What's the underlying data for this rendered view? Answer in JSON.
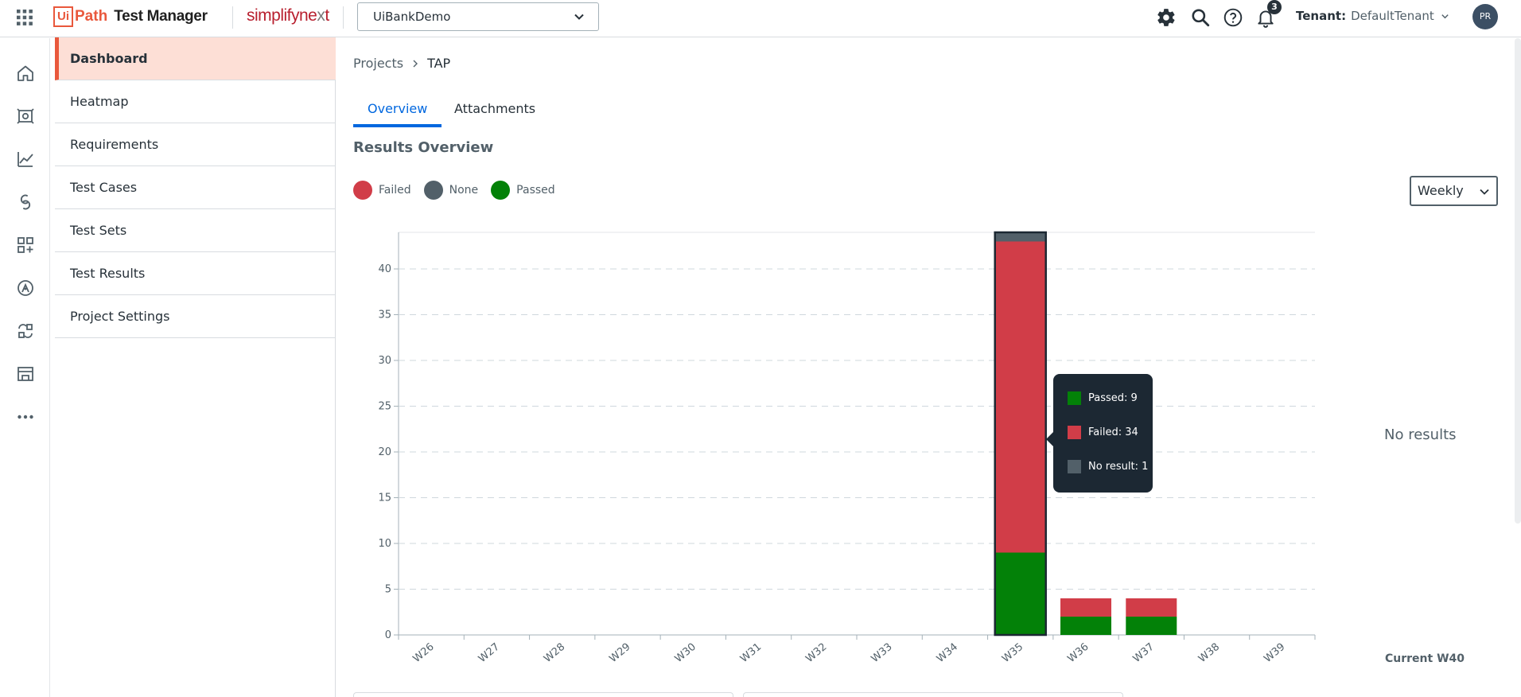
{
  "header": {
    "brand_logo": "Ui",
    "brand_logo2": "Path",
    "product": "Test Manager",
    "partner": "simplifyne",
    "partner_x": "x",
    "partner_t": "t",
    "project": "UiBankDemo",
    "notification_count": "3",
    "tenant_label": "Tenant:",
    "tenant_value": "DefaultTenant",
    "avatar_initials": "PR"
  },
  "rail": {
    "icons": [
      "home-icon",
      "test-manager-icon",
      "analytics-icon",
      "integration-icon",
      "apps-add-icon",
      "insights-icon",
      "automation-hub-icon",
      "admin-icon",
      "more-icon"
    ]
  },
  "sidebar": {
    "items": [
      {
        "label": "Dashboard",
        "active": true
      },
      {
        "label": "Heatmap"
      },
      {
        "label": "Requirements"
      },
      {
        "label": "Test Cases"
      },
      {
        "label": "Test Sets"
      },
      {
        "label": "Test Results"
      },
      {
        "label": "Project Settings"
      }
    ]
  },
  "breadcrumb": {
    "parent": "Projects",
    "current": "TAP"
  },
  "tabs": [
    {
      "label": "Overview",
      "active": true
    },
    {
      "label": "Attachments"
    }
  ],
  "section_title": "Results Overview",
  "legend": [
    {
      "label": "Failed",
      "color": "#d13d48"
    },
    {
      "label": "None",
      "color": "#526069"
    },
    {
      "label": "Passed",
      "color": "#038108"
    }
  ],
  "period": "Weekly",
  "no_results": "No results",
  "current_week": "Current W40",
  "tooltip": {
    "passed": "Passed: 9",
    "failed": "Failed: 34",
    "none": "No result: 1"
  },
  "colors": {
    "accent": "#e9583c",
    "link": "#0067df",
    "failed": "#d13d48",
    "none": "#526069",
    "passed": "#038108"
  },
  "chart_data": {
    "type": "bar",
    "stacked": true,
    "categories": [
      "W26",
      "W27",
      "W28",
      "W29",
      "W30",
      "W31",
      "W32",
      "W33",
      "W34",
      "W35",
      "W36",
      "W37",
      "W38",
      "W39"
    ],
    "series": [
      {
        "name": "Passed",
        "values": [
          0,
          0,
          0,
          0,
          0,
          0,
          0,
          0,
          0,
          9,
          2,
          2,
          0,
          0
        ]
      },
      {
        "name": "Failed",
        "values": [
          0,
          0,
          0,
          0,
          0,
          0,
          0,
          0,
          0,
          34,
          2,
          2,
          0,
          0
        ]
      },
      {
        "name": "None",
        "values": [
          0,
          0,
          0,
          0,
          0,
          0,
          0,
          0,
          0,
          1,
          0,
          0,
          0,
          0
        ]
      }
    ],
    "y_ticks": [
      0,
      5,
      10,
      15,
      20,
      25,
      30,
      35,
      40
    ],
    "ylim": [
      0,
      44
    ],
    "grid": true,
    "highlighted_category": "W35"
  }
}
